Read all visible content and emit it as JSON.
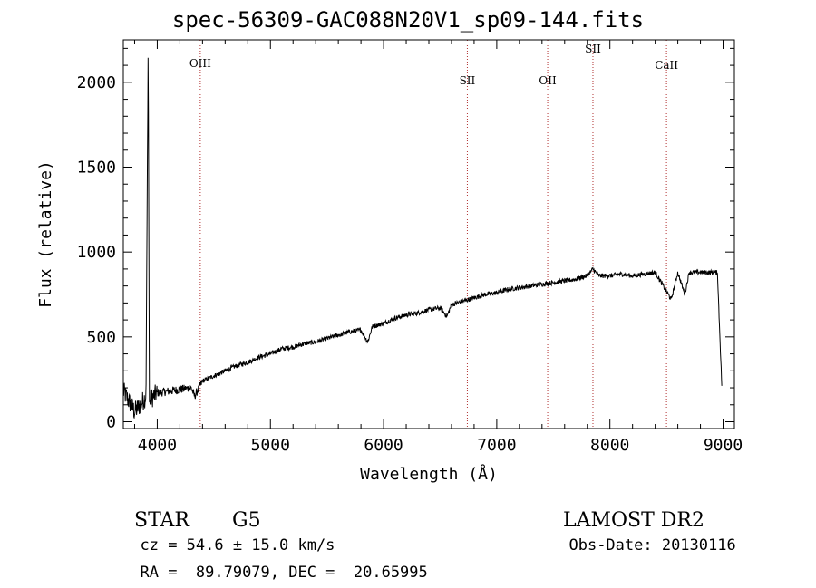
{
  "title": "spec-56309-GAC088N20V1_sp09-144.fits",
  "chart_data": {
    "type": "line",
    "title": "spec-56309-GAC088N20V1_sp09-144.fits",
    "xlabel": "Wavelength (Å)",
    "ylabel": "Flux (relative)",
    "xlim": [
      3700,
      9100
    ],
    "ylim": [
      -40,
      2250
    ],
    "xticks": [
      4000,
      5000,
      6000,
      7000,
      8000,
      9000
    ],
    "yticks": [
      0,
      500,
      1000,
      1500,
      2000
    ],
    "grid": false,
    "series": [
      {
        "x": [
          3700,
          3750,
          3800,
          3850,
          3900,
          3920,
          3930,
          3950,
          4000,
          4100,
          4200,
          4300,
          4330,
          4400,
          4500,
          4600,
          4700,
          4800,
          4900,
          5000,
          5100,
          5200,
          5300,
          5400,
          5500,
          5600,
          5700,
          5800,
          5860,
          5900,
          6000,
          6100,
          6200,
          6300,
          6400,
          6500,
          6560,
          6600,
          6700,
          6800,
          6900,
          7000,
          7100,
          7200,
          7300,
          7400,
          7500,
          7600,
          7700,
          7800,
          7850,
          7900,
          8000,
          8100,
          8200,
          8300,
          8400,
          8498,
          8542,
          8600,
          8662,
          8700,
          8800,
          8900,
          8950,
          8990
        ],
        "y": [
          180,
          120,
          60,
          100,
          150,
          2250,
          120,
          140,
          170,
          180,
          190,
          200,
          150,
          240,
          270,
          300,
          330,
          350,
          380,
          400,
          430,
          440,
          460,
          470,
          490,
          510,
          530,
          540,
          470,
          560,
          580,
          610,
          630,
          640,
          660,
          670,
          620,
          690,
          710,
          730,
          750,
          760,
          780,
          790,
          800,
          810,
          820,
          830,
          840,
          860,
          900,
          860,
          860,
          870,
          860,
          870,
          880,
          770,
          720,
          880,
          750,
          880,
          880,
          880,
          880,
          190
        ]
      }
    ],
    "lines": [
      {
        "label": "OIII",
        "x": 4380
      },
      {
        "label": "SII",
        "x": 6740
      },
      {
        "label": "OII",
        "x": 7450
      },
      {
        "label": "SII",
        "x": 7850
      },
      {
        "label": "CaII",
        "x": 8500
      }
    ]
  },
  "info": {
    "class_label": "STAR",
    "subclass": "G5",
    "survey": "LAMOST DR2",
    "cz": "cz = 54.6 ± 15.0 km/s",
    "obs_date": "Obs-Date: 20130116",
    "coords": "RA =  89.79079, DEC =  20.65995"
  },
  "colors": {
    "axis": "#000000",
    "spectrum": "#000000",
    "line_marker": "#b03030"
  }
}
